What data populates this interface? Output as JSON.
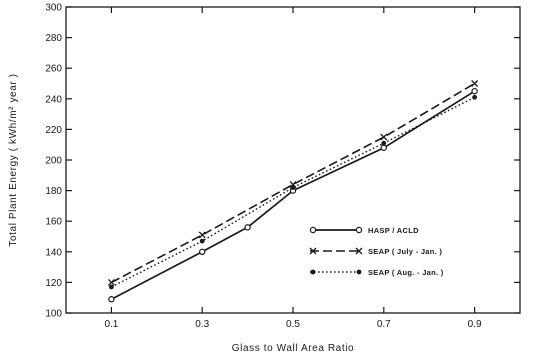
{
  "chart_data": {
    "type": "line",
    "title": "",
    "xlabel": "Glass to Wall Area Ratio",
    "ylabel": "Total Plant Energy ( kWh/m² year )",
    "xlim": [
      0.0,
      1.0
    ],
    "ylim": [
      100,
      300
    ],
    "x_ticks": [
      0.1,
      0.3,
      0.5,
      0.7,
      0.9
    ],
    "x_tick_labels": [
      "0.1",
      "0.3",
      "0.5",
      "0.7",
      "0.9"
    ],
    "y_ticks": [
      100,
      120,
      140,
      160,
      180,
      200,
      220,
      240,
      260,
      280,
      300
    ],
    "y_tick_labels": [
      "100",
      "120",
      "140",
      "160",
      "180",
      "200",
      "220",
      "240",
      "260",
      "280",
      "300"
    ],
    "grid": false,
    "legend_position": "lower-right",
    "series": [
      {
        "name": "HASP / ACLD",
        "line_style": "solid",
        "marker": "open-circle",
        "color": "#1a1a1a",
        "x": [
          0.1,
          0.3,
          0.4,
          0.5,
          0.7,
          0.9
        ],
        "values": [
          109,
          140,
          156,
          180,
          208,
          245
        ]
      },
      {
        "name": "SEAP ( July - Jan. )",
        "line_style": "dashed",
        "marker": "x",
        "color": "#1a1a1a",
        "x": [
          0.1,
          0.3,
          0.5,
          0.7,
          0.9
        ],
        "values": [
          120,
          151,
          184,
          215,
          250
        ]
      },
      {
        "name": "SEAP ( Aug. - Jan. )",
        "line_style": "dotted",
        "marker": "filled-circle",
        "color": "#1a1a1a",
        "x": [
          0.1,
          0.3,
          0.5,
          0.7,
          0.9
        ],
        "values": [
          117,
          147,
          182,
          211,
          241
        ]
      }
    ]
  }
}
